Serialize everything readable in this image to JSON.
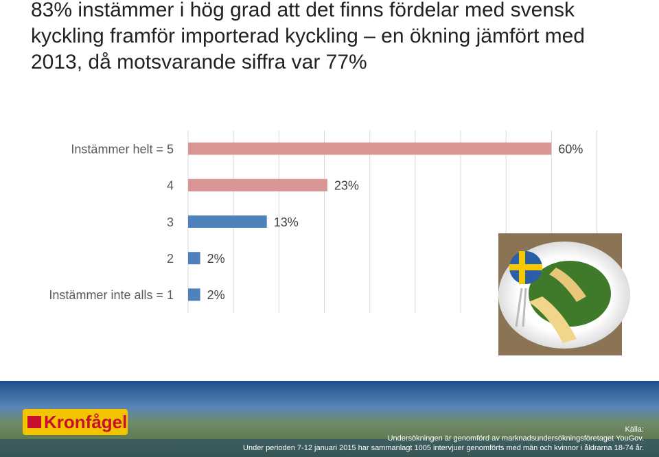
{
  "chart_data": {
    "type": "hbar",
    "title": "83% instämmer i hög grad att det finns fördelar med svensk kyckling framför importerad kyckling – en ökning jämfört med 2013, då motsvarande siffra var 77%",
    "categories": [
      "Instämmer helt = 5",
      "4",
      "3",
      "2",
      "Instämmer inte alls = 1"
    ],
    "values": [
      60,
      23,
      13,
      2,
      2
    ],
    "value_labels": [
      "60%",
      "23%",
      "13%",
      "2%",
      "2%"
    ],
    "colors": [
      "#d99694",
      "#d99694",
      "#4f81bd",
      "#4f81bd",
      "#4f81bd"
    ],
    "xlim": [
      0,
      67.5
    ],
    "xticks": [
      0,
      7.5,
      15,
      22.5,
      30,
      37.5,
      45,
      52.5,
      60,
      67.5
    ],
    "grid": true
  },
  "footer": {
    "logo": "Kronfågel",
    "source_heading": "Källa:",
    "source_lines": [
      "Undersökningen är genomförd av marknadsundersökningsföretaget YouGov.",
      "Under perioden 7-12 januari 2015 har sammanlagt 1005 intervjuer genomförts med män och kvinnor i åldrarna 18-74 år."
    ]
  }
}
